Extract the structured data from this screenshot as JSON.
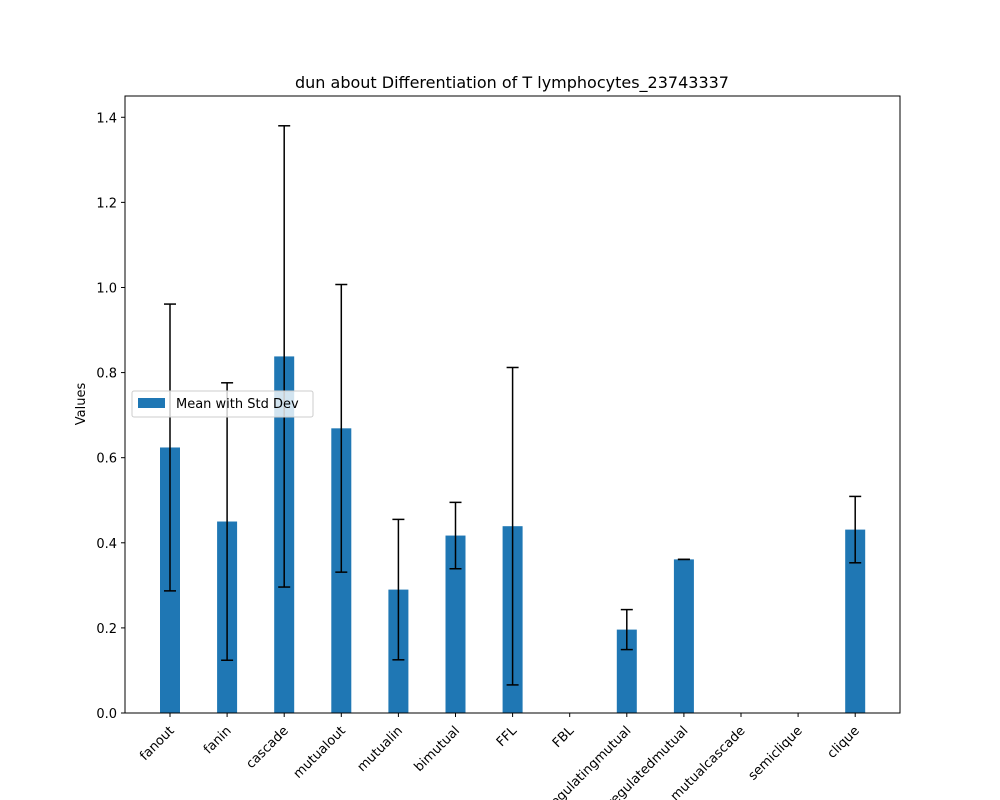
{
  "chart_data": {
    "type": "bar",
    "title": "dun about Differentiation of T lymphocytes_23743337",
    "xlabel": "",
    "ylabel": "Values",
    "ylim": [
      0,
      1.45
    ],
    "yticks": [
      0.0,
      0.2,
      0.4,
      0.6,
      0.8,
      1.0,
      1.2,
      1.4
    ],
    "ytick_labels": [
      "0.0",
      "0.2",
      "0.4",
      "0.6",
      "0.8",
      "1.0",
      "1.2",
      "1.4"
    ],
    "categories": [
      "fanout",
      "fanin",
      "cascade",
      "mutualout",
      "mutualin",
      "bimutual",
      "FFL",
      "FBL",
      "regulatingmutual",
      "regulatedmutual",
      "mutualcascade",
      "semiclique",
      "clique"
    ],
    "series": [
      {
        "name": "Mean with Std Dev",
        "color": "#1f77b4",
        "values": [
          0.624,
          0.45,
          0.838,
          0.669,
          0.29,
          0.417,
          0.439,
          0.0,
          0.196,
          0.361,
          0.0,
          0.0,
          0.431
        ],
        "errors": [
          0.337,
          0.326,
          0.542,
          0.338,
          0.165,
          0.078,
          0.373,
          0.0,
          0.047,
          0.0,
          0.0,
          0.0,
          0.078
        ]
      }
    ],
    "legend": {
      "location": "center-left"
    },
    "grid": false
  }
}
